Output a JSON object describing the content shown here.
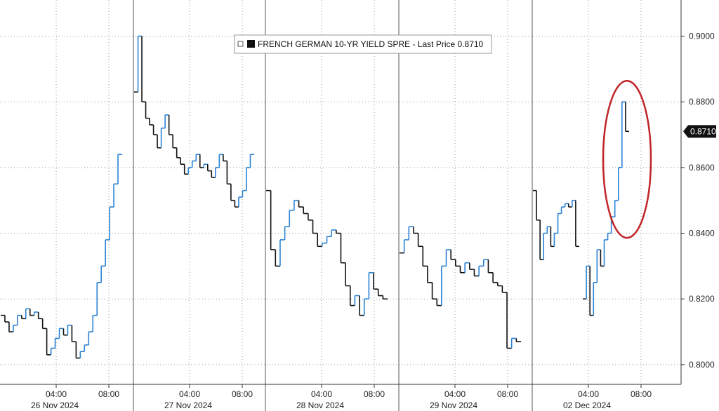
{
  "chart_data": {
    "type": "line",
    "title": "",
    "xlabel": "",
    "ylabel": "",
    "ylim": [
      0.794,
      0.911
    ],
    "y_ticks": [
      "0.8000",
      "0.8200",
      "0.8400",
      "0.8600",
      "0.8800",
      "0.9000"
    ],
    "grid": true,
    "legend": {
      "position": "top-center",
      "entries": [
        {
          "label": "FRENCH GERMAN 10-YR YIELD SPRE - Last Price 0.8710"
        }
      ]
    },
    "last_price": {
      "label": "0.8710",
      "value": 0.871
    },
    "annotation": {
      "type": "ellipse",
      "color": "#c0252a",
      "target_day": "02 Dec 2024"
    },
    "series": [
      {
        "name": "FRENCH GERMAN 10-YR YIELD SPRE",
        "color": "#111111",
        "up_color": "#2b82d4",
        "days": [
          {
            "date": "26 Nov 2024",
            "time_ticks": [
              "04:00",
              "08:00"
            ],
            "values": [
              0.815,
              0.813,
              0.81,
              0.812,
              0.815,
              0.814,
              0.817,
              0.815,
              0.816,
              0.814,
              0.811,
              0.803,
              0.805,
              0.808,
              0.811,
              0.809,
              0.812,
              0.807,
              0.802,
              0.804,
              0.806,
              0.81,
              0.815,
              0.825,
              0.83,
              0.838,
              0.848,
              0.855,
              0.864
            ]
          },
          {
            "date": "27 Nov 2024",
            "time_ticks": [
              "04:00",
              "08:00"
            ],
            "values": [
              0.883,
              0.9,
              0.88,
              0.875,
              0.873,
              0.87,
              0.866,
              0.872,
              0.876,
              0.87,
              0.866,
              0.863,
              0.861,
              0.858,
              0.86,
              0.862,
              0.864,
              0.86,
              0.861,
              0.859,
              0.857,
              0.86,
              0.864,
              0.862,
              0.855,
              0.85,
              0.848,
              0.851,
              0.853,
              0.86,
              0.864
            ]
          },
          {
            "date": "28 Nov 2024",
            "time_ticks": [
              "04:00",
              "08:00"
            ],
            "values": [
              0.853,
              0.835,
              0.83,
              0.838,
              0.842,
              0.847,
              0.85,
              0.848,
              0.846,
              0.844,
              0.84,
              0.836,
              0.837,
              0.839,
              0.841,
              0.84,
              0.831,
              0.824,
              0.818,
              0.821,
              0.815,
              0.82,
              0.828,
              0.823,
              0.821,
              0.82
            ]
          },
          {
            "date": "29 Nov 2024",
            "time_ticks": [
              "04:00",
              "08:00"
            ],
            "values": [
              0.834,
              0.838,
              0.842,
              0.84,
              0.836,
              0.83,
              0.825,
              0.82,
              0.818,
              0.83,
              0.835,
              0.832,
              0.83,
              0.828,
              0.831,
              0.829,
              0.827,
              0.83,
              0.832,
              0.828,
              0.825,
              0.824,
              0.822,
              0.805,
              0.808,
              0.807
            ]
          },
          {
            "date": "02 Dec 2024",
            "time_ticks": [
              "04:00",
              "08:00"
            ],
            "values": [
              0.853,
              0.844,
              0.832,
              0.84,
              0.842,
              0.836,
              0.84,
              0.846,
              0.848,
              0.849,
              0.848,
              0.85,
              0.836,
              null,
              0.82,
              0.83,
              0.815,
              0.825,
              0.835,
              0.83,
              0.838,
              0.84,
              0.845,
              0.85,
              0.86,
              0.88,
              0.871
            ]
          }
        ]
      }
    ]
  }
}
